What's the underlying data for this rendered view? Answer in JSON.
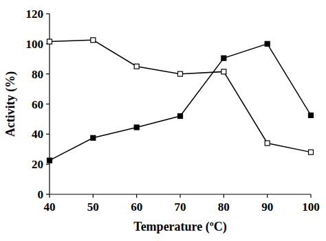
{
  "chart_data": {
    "type": "line",
    "x_label": "Temperature (ºC)",
    "y_label": "Activity (%)",
    "x": [
      40,
      50,
      60,
      70,
      80,
      90,
      100
    ],
    "series": [
      {
        "color": "#000000",
        "marker": "square",
        "values": [
          22.5,
          37.5,
          44.5,
          52,
          90.5,
          100,
          52.5
        ]
      },
      {
        "color": "#000000",
        "marker": "open-square",
        "values": [
          101.5,
          102.5,
          85,
          80,
          81.5,
          34,
          28
        ]
      }
    ],
    "xlim": [
      40,
      100
    ],
    "xticks": [
      40,
      50,
      60,
      70,
      80,
      90,
      100
    ],
    "ylim": [
      0,
      120
    ],
    "yticks": [
      0,
      20,
      40,
      60,
      80,
      100,
      120
    ],
    "grid": false
  }
}
